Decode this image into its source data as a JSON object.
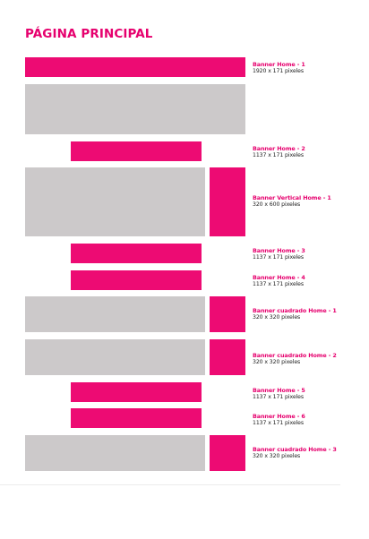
{
  "page": {
    "title": "PÁGINA PRINCIPAL"
  },
  "banners": [
    {
      "name": "Banner Home - 1",
      "size": "1920 x 171 pixeles"
    },
    {
      "name": "Banner Home - 2",
      "size": "1137 x 171 pixeles"
    },
    {
      "name": "Banner Vertical Home - 1",
      "size": "320 x 600 pixeles"
    },
    {
      "name": "Banner Home - 3",
      "size": "1137 x 171 pixeles"
    },
    {
      "name": "Banner Home - 4",
      "size": "1137 x 171 pixeles"
    },
    {
      "name": "Banner cuadrado Home - 1",
      "size": "320 x 320 pixeles"
    },
    {
      "name": "Banner cuadrado Home - 2",
      "size": "320 x 320 pixeles"
    },
    {
      "name": "Banner Home - 5",
      "size": "1137 x 171 pixeles"
    },
    {
      "name": "Banner Home - 6",
      "size": "1137 x 171 pixeles"
    },
    {
      "name": "Banner cuadrado Home - 3",
      "size": "320 x 320 pixeles"
    }
  ],
  "colors": {
    "accent": "#e6006e",
    "banner": "#ed0b73",
    "content": "#ccc9ca"
  }
}
